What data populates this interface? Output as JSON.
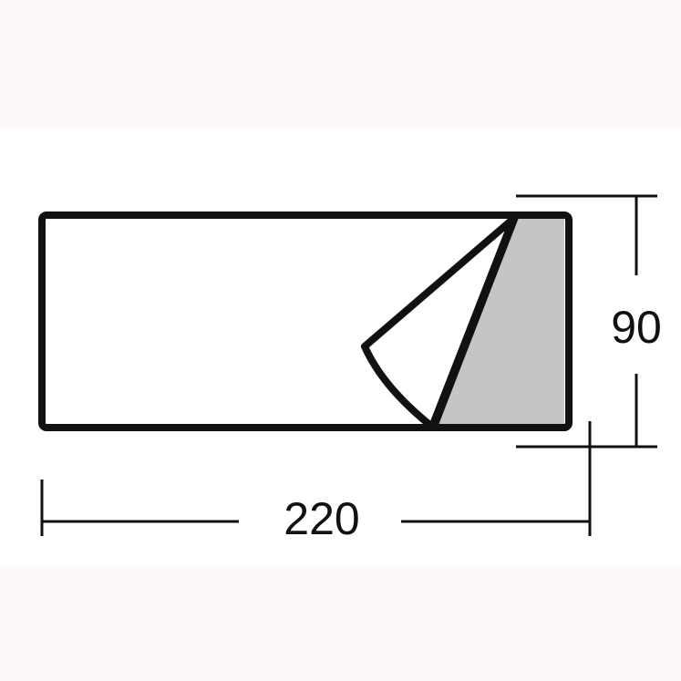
{
  "diagram": {
    "width_label": "220",
    "height_label": "90"
  },
  "colors": {
    "outline": "#111111",
    "fold_fill": "#c3c5c7",
    "background_band": "#fdf9f9",
    "panel": "#ffffff"
  }
}
